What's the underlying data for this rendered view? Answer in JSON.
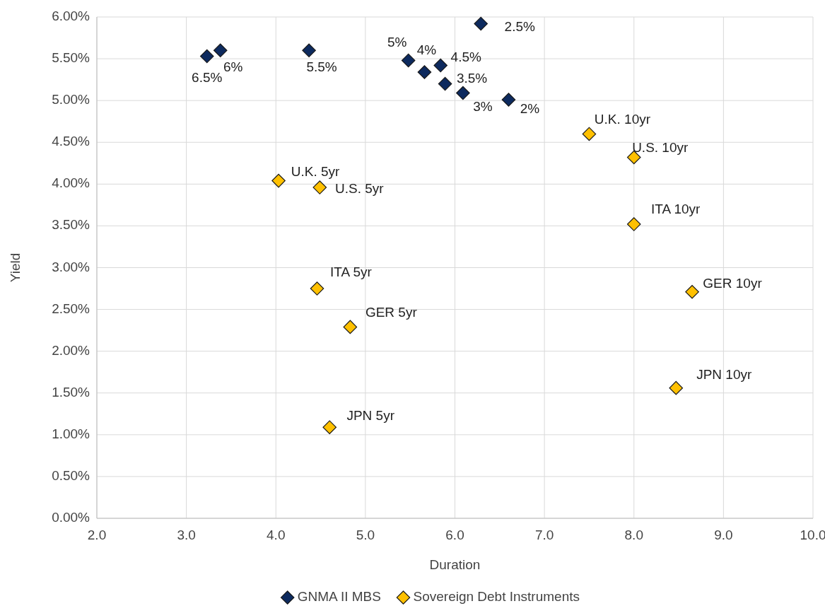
{
  "chart_data": {
    "type": "scatter",
    "xlabel": "Duration",
    "ylabel": "Yield",
    "marker": "diamond",
    "grid": true,
    "legend": "bottom",
    "xlim": [
      2,
      10
    ],
    "xticks": [
      {
        "value": 2,
        "label": "2.0"
      },
      {
        "value": 3,
        "label": "3.0"
      },
      {
        "value": 4,
        "label": "4.0"
      },
      {
        "value": 5,
        "label": "5.0"
      },
      {
        "value": 6,
        "label": "6.0"
      },
      {
        "value": 7,
        "label": "7.0"
      },
      {
        "value": 8,
        "label": "8.0"
      },
      {
        "value": 9,
        "label": "9.0"
      },
      {
        "value": 10,
        "label": "10.0"
      }
    ],
    "ylim": [
      0,
      6
    ],
    "yticks": [
      {
        "value": 0,
        "label": "0.00%"
      },
      {
        "value": 0.5,
        "label": "0.50%"
      },
      {
        "value": 1,
        "label": "1.00%"
      },
      {
        "value": 1.5,
        "label": "1.50%"
      },
      {
        "value": 2,
        "label": "2.00%"
      },
      {
        "value": 2.5,
        "label": "2.50%"
      },
      {
        "value": 3,
        "label": "3.00%"
      },
      {
        "value": 3.5,
        "label": "3.50%"
      },
      {
        "value": 4,
        "label": "4.00%"
      },
      {
        "value": 4.5,
        "label": "4.50%"
      },
      {
        "value": 5,
        "label": "5.00%"
      },
      {
        "value": 5.5,
        "label": "5.50%"
      },
      {
        "value": 6,
        "label": "6.00%"
      }
    ],
    "series": [
      {
        "name": "GNMA II MBS",
        "color": "#0d2a5e",
        "x": [
          3.23,
          3.38,
          4.37,
          5.48,
          5.66,
          5.84,
          5.89,
          6.09,
          6.29,
          6.6
        ],
        "values": [
          5.53,
          5.6,
          5.6,
          5.48,
          5.34,
          5.42,
          5.2,
          5.09,
          5.92,
          5.01
        ]
      },
      {
        "name": "Sovereign Debt Instruments",
        "color": "#ffc000",
        "x": [
          7.5,
          8.0,
          8.0,
          8.65,
          8.47,
          4.03,
          4.49,
          4.46,
          4.83,
          4.6
        ],
        "values": [
          4.6,
          4.32,
          3.52,
          2.71,
          1.56,
          4.04,
          3.96,
          2.75,
          2.29,
          1.09
        ]
      }
    ],
    "annotations": [
      {
        "text": "6.5%",
        "x": 3.23,
        "y": 5.53
      },
      {
        "text": "6%",
        "x": 3.38,
        "y": 5.6
      },
      {
        "text": "5.5%",
        "x": 4.37,
        "y": 5.6
      },
      {
        "text": "5%",
        "x": 5.48,
        "y": 5.48
      },
      {
        "text": "4%",
        "x": 5.66,
        "y": 5.34
      },
      {
        "text": "4.5%",
        "x": 5.84,
        "y": 5.42
      },
      {
        "text": "3.5%",
        "x": 5.89,
        "y": 5.2
      },
      {
        "text": "3%",
        "x": 6.09,
        "y": 5.09
      },
      {
        "text": "2.5%",
        "x": 6.29,
        "y": 5.92
      },
      {
        "text": "2%",
        "x": 6.6,
        "y": 5.01
      },
      {
        "text": "U.K. 10yr",
        "x": 7.5,
        "y": 4.6
      },
      {
        "text": "U.S. 10yr",
        "x": 8.0,
        "y": 4.32
      },
      {
        "text": "ITA 10yr",
        "x": 8.0,
        "y": 3.52
      },
      {
        "text": "GER 10yr",
        "x": 8.65,
        "y": 2.71
      },
      {
        "text": "JPN 10yr",
        "x": 8.47,
        "y": 1.56
      },
      {
        "text": "U.K. 5yr",
        "x": 4.03,
        "y": 4.04
      },
      {
        "text": "U.S. 5yr",
        "x": 4.49,
        "y": 3.96
      },
      {
        "text": "ITA 5yr",
        "x": 4.46,
        "y": 2.75
      },
      {
        "text": "GER 5yr",
        "x": 4.83,
        "y": 2.29
      },
      {
        "text": "JPN 5yr",
        "x": 4.6,
        "y": 1.09
      }
    ]
  }
}
